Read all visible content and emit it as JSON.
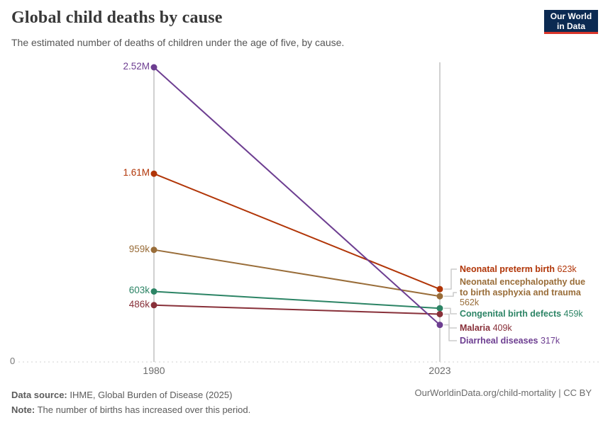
{
  "header": {
    "title": "Global child deaths by cause",
    "subtitle": "The estimated number of deaths of children under the age of five, by cause.",
    "logo_line1": "Our World",
    "logo_line2": "in Data"
  },
  "chart_data": {
    "type": "line",
    "subtype": "slope-chart",
    "x": [
      "1980",
      "2023"
    ],
    "series": [
      {
        "name": "Neonatal preterm birth",
        "color": "#b13507",
        "values": [
          1610000,
          623000
        ],
        "start_label": "1.61M",
        "end_label": "623k"
      },
      {
        "name": "Neonatal encephalopathy due to birth asphyxia and trauma",
        "color": "#996d39",
        "values": [
          959000,
          562000
        ],
        "start_label": "959k",
        "end_label": "562k"
      },
      {
        "name": "Congenital birth defects",
        "color": "#2c8465",
        "values": [
          603000,
          459000
        ],
        "start_label": "603k",
        "end_label": "459k"
      },
      {
        "name": "Malaria",
        "color": "#883039",
        "values": [
          486000,
          409000
        ],
        "start_label": "486k",
        "end_label": "409k"
      },
      {
        "name": "Diarrheal diseases",
        "color": "#6d3e91",
        "values": [
          2520000,
          317000
        ],
        "start_label": "2.52M",
        "end_label": "317k"
      }
    ],
    "ylim": [
      0,
      2520000
    ],
    "y_zero_label": "0",
    "grid": "zero-baseline-only",
    "legend_position": "right-inline-labels"
  },
  "footer": {
    "source_label": "Data source:",
    "source_text": " IHME, Global Burden of Disease (2025)",
    "note_label": "Note:",
    "note_text": " The number of births has increased over this period.",
    "link": "OurWorldinData.org/child-mortality | CC BY"
  }
}
